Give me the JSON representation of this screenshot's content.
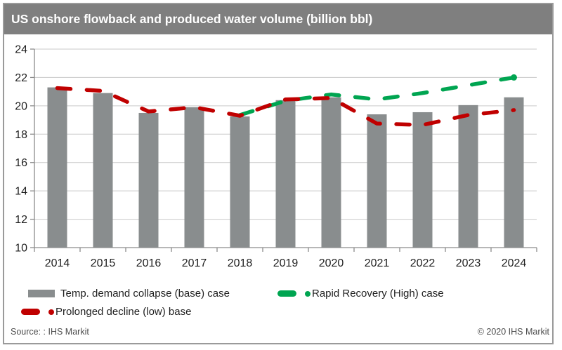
{
  "title": "US onshore flowback and produced water volume (billion bbl)",
  "legend": {
    "base_case": "Temp. demand collapse (base) case",
    "high_case": "Rapid Recovery (High) case",
    "low_case": "Prolonged decline (low) base"
  },
  "footer": {
    "source": "Source: : IHS Markit",
    "copyright": "© 2020 IHS Markit"
  },
  "colors": {
    "title_bar": "#7f7f7f",
    "bar_gray": "#898d8e",
    "line_green": "#00a551",
    "line_red": "#c00000",
    "gridline": "#c9c9c9",
    "axis": "#8c8c8c",
    "axis_text": "#1f1f1f"
  },
  "chart_data": {
    "type": "bar",
    "title": "US onshore flowback and produced water volume (billion bbl)",
    "xlabel": "",
    "ylabel": "billion bbl",
    "ylim": [
      10,
      24
    ],
    "ytick_step": 2,
    "grid": true,
    "legend_position": "bottom",
    "categories": [
      "2014",
      "2015",
      "2016",
      "2017",
      "2018",
      "2019",
      "2020",
      "2021",
      "2022",
      "2023",
      "2024"
    ],
    "series": [
      {
        "name": "Temp. demand collapse (base) case",
        "type": "bar",
        "color": "#898d8e",
        "values": [
          21.3,
          20.9,
          19.5,
          19.9,
          19.25,
          20.4,
          20.6,
          19.4,
          19.55,
          20.05,
          20.6
        ]
      },
      {
        "name": "Rapid Recovery (High) case",
        "type": "line",
        "style": "dashed",
        "color": "#00a551",
        "end_dot": true,
        "values": [
          null,
          null,
          null,
          null,
          19.35,
          20.35,
          20.8,
          20.45,
          20.9,
          21.45,
          22.0
        ]
      },
      {
        "name": "Prolonged decline (low) base",
        "type": "line",
        "style": "dashed",
        "color": "#c00000",
        "end_dot": false,
        "values": [
          21.25,
          21.05,
          19.6,
          19.9,
          19.3,
          20.45,
          20.55,
          18.75,
          18.65,
          19.35,
          19.7
        ]
      }
    ]
  }
}
